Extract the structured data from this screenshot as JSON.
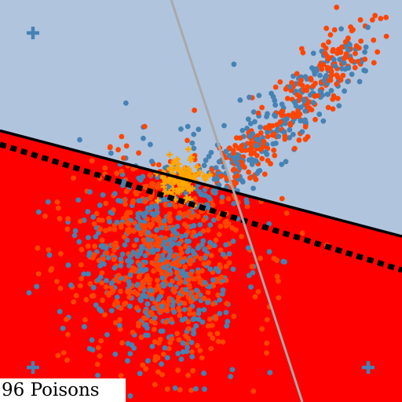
{
  "chart_data": {
    "type": "scatter",
    "xlim": [
      0,
      1
    ],
    "ylim": [
      0,
      1
    ],
    "grid": false,
    "regions": {
      "upper_class_color": "#b0c4de",
      "lower_class_color": "#ff0000"
    },
    "boundaries": [
      {
        "name": "",
        "style": "solid",
        "color": "#000000",
        "points": [
          [
            0.0,
            0.675
          ],
          [
            1.0,
            0.412
          ]
        ]
      },
      {
        "name": "",
        "style": "dashed",
        "color": "#000000",
        "points": [
          [
            0.0,
            0.641
          ],
          [
            1.0,
            0.328
          ]
        ]
      },
      {
        "name": "",
        "style": "solid",
        "color": "#a9a9a9",
        "points": [
          [
            0.426,
            1.0
          ],
          [
            0.752,
            0.0
          ]
        ]
      }
    ],
    "centers": [
      {
        "x": 0.082,
        "y": 0.918
      },
      {
        "x": 0.082,
        "y": 0.086
      },
      {
        "x": 0.916,
        "y": 0.086
      }
    ],
    "series": [
      {
        "name": "",
        "color": "#4682b4",
        "count": 700
      },
      {
        "name": "",
        "color": "#ff4500",
        "count": 820
      },
      {
        "name": "",
        "color": "#ffa500",
        "count": 96
      }
    ],
    "clusters": [
      {
        "label": "diffuse-blob",
        "center": [
          0.4,
          0.36
        ],
        "spread": [
          0.11,
          0.14
        ]
      },
      {
        "label": "diagonal-arm",
        "from": [
          0.55,
          0.54
        ],
        "to": [
          0.9,
          0.91
        ],
        "width": 0.035
      },
      {
        "label": "poison-cluster",
        "center": [
          0.45,
          0.55
        ],
        "spread": [
          0.025,
          0.025
        ]
      }
    ]
  },
  "caption": {
    "text": "96 Poisons"
  },
  "colors": {
    "center_marker": "#4682b4",
    "caption_bg": "#ffffff"
  }
}
